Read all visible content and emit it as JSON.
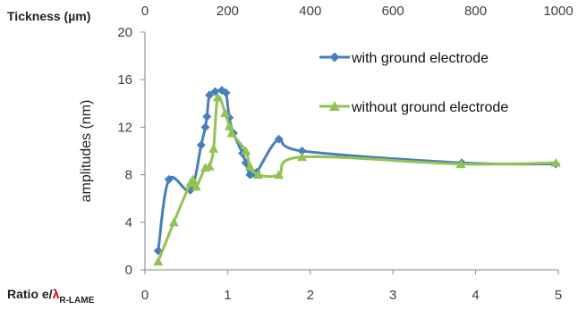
{
  "chart_data": {
    "type": "line",
    "ylabel": "amplitudes (nm)",
    "ylim": [
      0,
      20
    ],
    "yticks": [
      "0",
      "4",
      "8",
      "12",
      "16",
      "20"
    ],
    "bottom_axis": {
      "label_main": "Ratio e/",
      "label_symbol": "λ",
      "label_sub": "R-LAME",
      "lim": [
        0,
        5
      ],
      "ticks": [
        "0",
        "1",
        "2",
        "3",
        "4",
        "5"
      ]
    },
    "top_axis": {
      "label": "Tickness (µm)",
      "lim": [
        0,
        1000
      ],
      "ticks": [
        "0",
        "200",
        "400",
        "600",
        "800",
        "1000"
      ]
    },
    "grid": false,
    "legend_position": "upper-right inside plot",
    "series": [
      {
        "name": "with ground electrode",
        "color": "#4a7ebb",
        "marker": "diamond",
        "points": [
          [
            0.16,
            1.6
          ],
          [
            0.29,
            7.6
          ],
          [
            0.55,
            6.7
          ],
          [
            0.68,
            10.5
          ],
          [
            0.73,
            12.0
          ],
          [
            0.75,
            12.9
          ],
          [
            0.78,
            14.7
          ],
          [
            0.85,
            15.0
          ],
          [
            0.93,
            15.1
          ],
          [
            0.98,
            14.9
          ],
          [
            1.02,
            12.8
          ],
          [
            1.07,
            11.5
          ],
          [
            1.18,
            9.8
          ],
          [
            1.22,
            9.0
          ],
          [
            1.27,
            8.0
          ],
          [
            1.35,
            8.2
          ],
          [
            1.62,
            11.0
          ],
          [
            1.9,
            10.0
          ],
          [
            3.83,
            9.0
          ],
          [
            4.97,
            8.9
          ]
        ]
      },
      {
        "name": "without ground electrode",
        "color": "#92c353",
        "marker": "triangle",
        "points": [
          [
            0.16,
            0.7
          ],
          [
            0.35,
            4.0
          ],
          [
            0.55,
            7.3
          ],
          [
            0.58,
            7.6
          ],
          [
            0.62,
            7.0
          ],
          [
            0.73,
            8.6
          ],
          [
            0.78,
            8.7
          ],
          [
            0.83,
            10.2
          ],
          [
            0.88,
            14.5
          ],
          [
            0.97,
            13.2
          ],
          [
            1.02,
            12.1
          ],
          [
            1.05,
            11.5
          ],
          [
            1.22,
            10.0
          ],
          [
            1.27,
            8.7
          ],
          [
            1.37,
            8.0
          ],
          [
            1.62,
            8.0
          ],
          [
            1.9,
            9.5
          ],
          [
            3.82,
            8.9
          ],
          [
            4.97,
            9.0
          ]
        ]
      }
    ]
  }
}
